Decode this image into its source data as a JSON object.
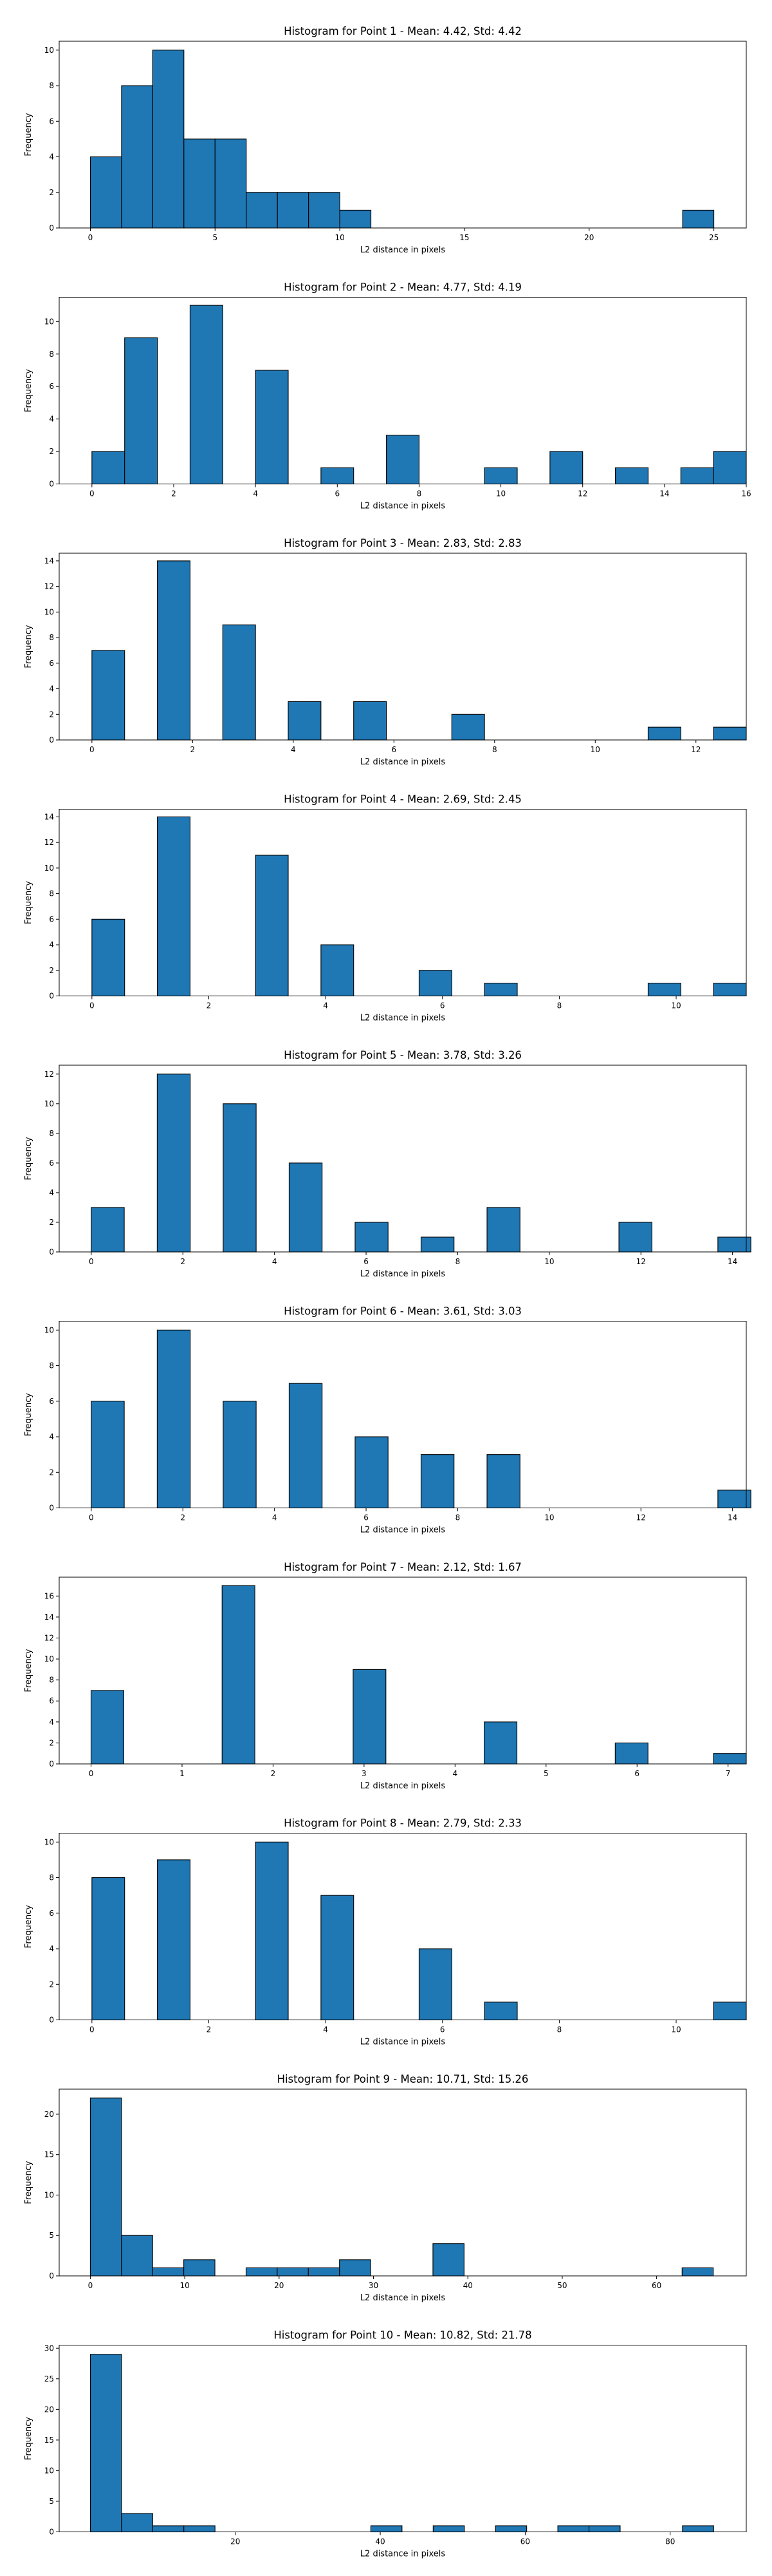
{
  "chart_data": [
    {
      "type": "bar",
      "title": "Histogram for Point 1 - Mean: 4.42, Std: 4.42",
      "xlabel": "L2 distance in pixels",
      "ylabel": "Frequency",
      "xlim": [
        -1.25,
        26.3
      ],
      "ylim": [
        0,
        10.5
      ],
      "xticks": [
        0,
        5,
        10,
        15,
        20,
        25
      ],
      "yticks": [
        0,
        2,
        4,
        6,
        8,
        10
      ],
      "bar_color": "#1f77b4",
      "edge_color": "#000000",
      "grid": false,
      "bins": [
        {
          "x0": 0,
          "x1": 1.25,
          "count": 4
        },
        {
          "x0": 1.25,
          "x1": 2.5,
          "count": 8
        },
        {
          "x0": 2.5,
          "x1": 3.75,
          "count": 10
        },
        {
          "x0": 3.75,
          "x1": 5.0,
          "count": 5
        },
        {
          "x0": 5.0,
          "x1": 6.25,
          "count": 5
        },
        {
          "x0": 6.25,
          "x1": 7.5,
          "count": 2
        },
        {
          "x0": 7.5,
          "x1": 8.75,
          "count": 2
        },
        {
          "x0": 8.75,
          "x1": 10.0,
          "count": 2
        },
        {
          "x0": 10.0,
          "x1": 11.25,
          "count": 1
        },
        {
          "x0": 23.75,
          "x1": 25.0,
          "count": 1
        }
      ]
    },
    {
      "type": "bar",
      "title": "Histogram for Point 2 - Mean: 4.77, Std: 4.19",
      "xlabel": "L2 distance in pixels",
      "ylabel": "Frequency",
      "xlim": [
        -0.8,
        16.0
      ],
      "ylim": [
        0,
        11.5
      ],
      "xticks": [
        0,
        2,
        4,
        6,
        8,
        10,
        12,
        14,
        16
      ],
      "yticks": [
        0,
        2,
        4,
        6,
        8,
        10
      ],
      "bar_color": "#1f77b4",
      "edge_color": "#000000",
      "grid": false,
      "bins": [
        {
          "x0": 0,
          "x1": 0.8,
          "count": 2
        },
        {
          "x0": 0.8,
          "x1": 1.6,
          "count": 9
        },
        {
          "x0": 2.4,
          "x1": 3.2,
          "count": 11
        },
        {
          "x0": 4.0,
          "x1": 4.8,
          "count": 7
        },
        {
          "x0": 5.6,
          "x1": 6.4,
          "count": 1
        },
        {
          "x0": 7.2,
          "x1": 8.0,
          "count": 3
        },
        {
          "x0": 9.6,
          "x1": 10.4,
          "count": 1
        },
        {
          "x0": 11.2,
          "x1": 12.0,
          "count": 2
        },
        {
          "x0": 12.8,
          "x1": 13.6,
          "count": 1
        },
        {
          "x0": 14.4,
          "x1": 15.2,
          "count": 1
        },
        {
          "x0": 15.2,
          "x1": 16.0,
          "count": 2
        }
      ]
    },
    {
      "type": "bar",
      "title": "Histogram for Point 3 - Mean: 2.83, Std: 2.83",
      "xlabel": "L2 distance in pixels",
      "ylabel": "Frequency",
      "xlim": [
        -0.65,
        13.0
      ],
      "ylim": [
        0,
        14.6
      ],
      "xticks": [
        0,
        2,
        4,
        6,
        8,
        10,
        12
      ],
      "yticks": [
        0,
        2,
        4,
        6,
        8,
        10,
        12,
        14
      ],
      "bar_color": "#1f77b4",
      "edge_color": "#000000",
      "grid": false,
      "bins": [
        {
          "x0": 0,
          "x1": 0.65,
          "count": 7
        },
        {
          "x0": 1.3,
          "x1": 1.95,
          "count": 14
        },
        {
          "x0": 2.6,
          "x1": 3.25,
          "count": 9
        },
        {
          "x0": 3.9,
          "x1": 4.55,
          "count": 3
        },
        {
          "x0": 5.2,
          "x1": 5.85,
          "count": 3
        },
        {
          "x0": 7.15,
          "x1": 7.8,
          "count": 2
        },
        {
          "x0": 11.05,
          "x1": 11.7,
          "count": 1
        },
        {
          "x0": 12.35,
          "x1": 13.0,
          "count": 1
        }
      ]
    },
    {
      "type": "bar",
      "title": "Histogram for Point 4 - Mean: 2.69, Std: 2.45",
      "xlabel": "L2 distance in pixels",
      "ylabel": "Frequency",
      "xlim": [
        -0.56,
        11.2
      ],
      "ylim": [
        0,
        14.6
      ],
      "xticks": [
        0,
        2,
        4,
        6,
        8,
        10
      ],
      "yticks": [
        0,
        2,
        4,
        6,
        8,
        10,
        12,
        14
      ],
      "bar_color": "#1f77b4",
      "edge_color": "#000000",
      "grid": false,
      "bins": [
        {
          "x0": 0,
          "x1": 0.56,
          "count": 6
        },
        {
          "x0": 1.12,
          "x1": 1.68,
          "count": 14
        },
        {
          "x0": 2.8,
          "x1": 3.36,
          "count": 11
        },
        {
          "x0": 3.92,
          "x1": 4.48,
          "count": 4
        },
        {
          "x0": 5.6,
          "x1": 6.16,
          "count": 2
        },
        {
          "x0": 6.72,
          "x1": 7.28,
          "count": 1
        },
        {
          "x0": 9.52,
          "x1": 10.08,
          "count": 1
        },
        {
          "x0": 10.64,
          "x1": 11.2,
          "count": 1
        }
      ]
    },
    {
      "type": "bar",
      "title": "Histogram for Point 5 - Mean: 3.78, Std: 3.26",
      "xlabel": "L2 distance in pixels",
      "ylabel": "Frequency",
      "xlim": [
        -0.7,
        14.3
      ],
      "ylim": [
        0,
        12.6
      ],
      "xticks": [
        0,
        2,
        4,
        6,
        8,
        10,
        12,
        14
      ],
      "yticks": [
        0,
        2,
        4,
        6,
        8,
        10,
        12
      ],
      "bar_color": "#1f77b4",
      "edge_color": "#000000",
      "grid": false,
      "bins": [
        {
          "x0": 0,
          "x1": 0.72,
          "count": 3
        },
        {
          "x0": 1.44,
          "x1": 2.16,
          "count": 12
        },
        {
          "x0": 2.88,
          "x1": 3.6,
          "count": 10
        },
        {
          "x0": 4.32,
          "x1": 5.04,
          "count": 6
        },
        {
          "x0": 5.76,
          "x1": 6.48,
          "count": 2
        },
        {
          "x0": 7.2,
          "x1": 7.92,
          "count": 1
        },
        {
          "x0": 8.64,
          "x1": 9.36,
          "count": 3
        },
        {
          "x0": 11.52,
          "x1": 12.24,
          "count": 2
        },
        {
          "x0": 13.68,
          "x1": 14.4,
          "count": 1
        }
      ]
    },
    {
      "type": "bar",
      "title": "Histogram for Point 6 - Mean: 3.61, Std: 3.03",
      "xlabel": "L2 distance in pixels",
      "ylabel": "Frequency",
      "xlim": [
        -0.7,
        14.3
      ],
      "ylim": [
        0,
        10.5
      ],
      "xticks": [
        0,
        2,
        4,
        6,
        8,
        10,
        12,
        14
      ],
      "yticks": [
        0,
        2,
        4,
        6,
        8,
        10
      ],
      "bar_color": "#1f77b4",
      "edge_color": "#000000",
      "grid": false,
      "bins": [
        {
          "x0": 0,
          "x1": 0.72,
          "count": 6
        },
        {
          "x0": 1.44,
          "x1": 2.16,
          "count": 10
        },
        {
          "x0": 2.88,
          "x1": 3.6,
          "count": 6
        },
        {
          "x0": 4.32,
          "x1": 5.04,
          "count": 7
        },
        {
          "x0": 5.76,
          "x1": 6.48,
          "count": 4
        },
        {
          "x0": 7.2,
          "x1": 7.92,
          "count": 3
        },
        {
          "x0": 8.64,
          "x1": 9.36,
          "count": 3
        },
        {
          "x0": 13.68,
          "x1": 14.4,
          "count": 1
        }
      ]
    },
    {
      "type": "bar",
      "title": "Histogram for Point 7 - Mean: 2.12, Std: 1.67",
      "xlabel": "L2 distance in pixels",
      "ylabel": "Frequency",
      "xlim": [
        -0.35,
        7.2
      ],
      "ylim": [
        0,
        17.8
      ],
      "xticks": [
        0,
        1,
        2,
        3,
        4,
        5,
        6,
        7
      ],
      "yticks": [
        0,
        2,
        4,
        6,
        8,
        10,
        12,
        14,
        16
      ],
      "bar_color": "#1f77b4",
      "edge_color": "#000000",
      "grid": false,
      "bins": [
        {
          "x0": 0,
          "x1": 0.36,
          "count": 7
        },
        {
          "x0": 1.44,
          "x1": 1.8,
          "count": 17
        },
        {
          "x0": 2.88,
          "x1": 3.24,
          "count": 9
        },
        {
          "x0": 4.32,
          "x1": 4.68,
          "count": 4
        },
        {
          "x0": 5.76,
          "x1": 6.12,
          "count": 2
        },
        {
          "x0": 6.84,
          "x1": 7.2,
          "count": 1
        }
      ]
    },
    {
      "type": "bar",
      "title": "Histogram for Point 8 - Mean: 2.79, Std: 2.33",
      "xlabel": "L2 distance in pixels",
      "ylabel": "Frequency",
      "xlim": [
        -0.56,
        11.2
      ],
      "ylim": [
        0,
        10.5
      ],
      "xticks": [
        0,
        2,
        4,
        6,
        8,
        10
      ],
      "yticks": [
        0,
        2,
        4,
        6,
        8,
        10
      ],
      "bar_color": "#1f77b4",
      "edge_color": "#000000",
      "grid": false,
      "bins": [
        {
          "x0": 0,
          "x1": 0.56,
          "count": 8
        },
        {
          "x0": 1.12,
          "x1": 1.68,
          "count": 9
        },
        {
          "x0": 2.8,
          "x1": 3.36,
          "count": 10
        },
        {
          "x0": 3.92,
          "x1": 4.48,
          "count": 7
        },
        {
          "x0": 5.6,
          "x1": 6.16,
          "count": 4
        },
        {
          "x0": 6.72,
          "x1": 7.28,
          "count": 1
        },
        {
          "x0": 10.64,
          "x1": 11.2,
          "count": 1
        }
      ]
    },
    {
      "type": "bar",
      "title": "Histogram for Point 9 - Mean: 10.71, Std: 15.26",
      "xlabel": "L2 distance in pixels",
      "ylabel": "Frequency",
      "xlim": [
        -3.3,
        69.5
      ],
      "ylim": [
        0,
        23.1
      ],
      "xticks": [
        0,
        10,
        20,
        30,
        40,
        50,
        60
      ],
      "yticks": [
        0,
        5,
        10,
        15,
        20
      ],
      "bar_color": "#1f77b4",
      "edge_color": "#000000",
      "grid": false,
      "bins": [
        {
          "x0": 0,
          "x1": 3.3,
          "count": 22
        },
        {
          "x0": 3.3,
          "x1": 6.6,
          "count": 5
        },
        {
          "x0": 6.6,
          "x1": 9.9,
          "count": 1
        },
        {
          "x0": 9.9,
          "x1": 13.2,
          "count": 2
        },
        {
          "x0": 16.5,
          "x1": 19.8,
          "count": 1
        },
        {
          "x0": 19.8,
          "x1": 23.1,
          "count": 1
        },
        {
          "x0": 23.1,
          "x1": 26.4,
          "count": 1
        },
        {
          "x0": 26.4,
          "x1": 29.7,
          "count": 2
        },
        {
          "x0": 36.3,
          "x1": 39.6,
          "count": 4
        },
        {
          "x0": 62.7,
          "x1": 66.0,
          "count": 1
        }
      ]
    },
    {
      "type": "bar",
      "title": "Histogram for Point 10 - Mean: 10.82, Std: 21.78",
      "xlabel": "L2 distance in pixels",
      "ylabel": "Frequency",
      "xlim": [
        -4.3,
        90.5
      ],
      "ylim": [
        0,
        30.5
      ],
      "xticks": [
        20,
        40,
        60,
        80
      ],
      "yticks": [
        0,
        5,
        10,
        15,
        20,
        25,
        30
      ],
      "bar_color": "#1f77b4",
      "edge_color": "#000000",
      "grid": false,
      "bins": [
        {
          "x0": 0,
          "x1": 4.3,
          "count": 29
        },
        {
          "x0": 4.3,
          "x1": 8.6,
          "count": 3
        },
        {
          "x0": 8.6,
          "x1": 12.9,
          "count": 1
        },
        {
          "x0": 12.9,
          "x1": 17.2,
          "count": 1
        },
        {
          "x0": 38.7,
          "x1": 43.0,
          "count": 1
        },
        {
          "x0": 47.3,
          "x1": 51.6,
          "count": 1
        },
        {
          "x0": 55.9,
          "x1": 60.2,
          "count": 1
        },
        {
          "x0": 64.5,
          "x1": 68.8,
          "count": 1
        },
        {
          "x0": 68.8,
          "x1": 73.1,
          "count": 1
        },
        {
          "x0": 81.7,
          "x1": 86.0,
          "count": 1
        }
      ]
    }
  ]
}
